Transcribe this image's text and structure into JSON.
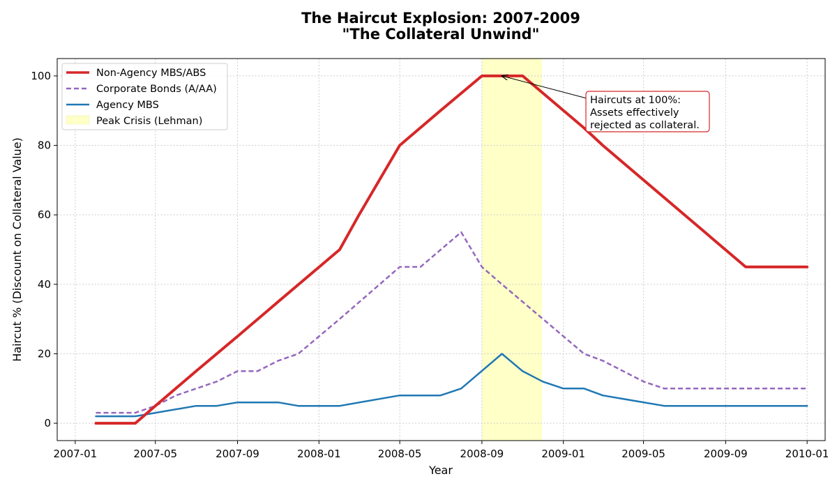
{
  "chart_data": {
    "type": "line",
    "title": "The Haircut Explosion: 2007-2009",
    "subtitle": "\"The Collateral Unwind\"",
    "xlabel": "Year",
    "ylabel": "Haircut % (Discount on Collateral Value)",
    "ylim": [
      -5,
      105
    ],
    "xlim": [
      "2006-12-05",
      "2010-01-28"
    ],
    "grid": true,
    "legend_position": "top-left",
    "x_ticks": [
      "2007-01",
      "2007-05",
      "2007-09",
      "2008-01",
      "2008-05",
      "2008-09",
      "2009-01",
      "2009-05",
      "2009-09",
      "2010-01"
    ],
    "y_ticks": [
      0,
      20,
      40,
      60,
      80,
      100
    ],
    "shaded_region": {
      "label": "Peak Crisis (Lehman)",
      "start": "2008-09-01",
      "end": "2008-11-30",
      "color": "#ffffc8"
    },
    "series": [
      {
        "name": "Non-Agency MBS/ABS",
        "color": "#d62728",
        "style": "solid-thick",
        "points": [
          [
            "2007-02-01",
            0
          ],
          [
            "2007-04-01",
            0
          ],
          [
            "2007-05-01",
            5
          ],
          [
            "2007-07-01",
            15
          ],
          [
            "2007-09-01",
            25
          ],
          [
            "2007-11-01",
            35
          ],
          [
            "2008-02-01",
            50
          ],
          [
            "2008-03-01",
            60
          ],
          [
            "2008-05-01",
            80
          ],
          [
            "2008-07-01",
            90
          ],
          [
            "2008-09-01",
            100
          ],
          [
            "2008-10-01",
            100
          ],
          [
            "2008-11-01",
            100
          ],
          [
            "2009-02-01",
            85
          ],
          [
            "2009-03-01",
            80
          ],
          [
            "2009-10-01",
            45
          ],
          [
            "2010-01-01",
            45
          ]
        ]
      },
      {
        "name": "Corporate Bonds (A/AA)",
        "color": "#9467bd",
        "style": "dashed",
        "points": [
          [
            "2007-02-01",
            3
          ],
          [
            "2007-04-01",
            3
          ],
          [
            "2007-05-01",
            5
          ],
          [
            "2007-06-01",
            8
          ],
          [
            "2007-08-01",
            12
          ],
          [
            "2007-09-01",
            15
          ],
          [
            "2007-10-01",
            15
          ],
          [
            "2007-11-01",
            18
          ],
          [
            "2007-12-01",
            20
          ],
          [
            "2008-02-01",
            30
          ],
          [
            "2008-05-01",
            45
          ],
          [
            "2008-06-01",
            45
          ],
          [
            "2008-08-01",
            55
          ],
          [
            "2008-09-01",
            45
          ],
          [
            "2008-10-01",
            40
          ],
          [
            "2009-02-01",
            20
          ],
          [
            "2009-03-01",
            18
          ],
          [
            "2009-05-01",
            12
          ],
          [
            "2009-06-01",
            10
          ],
          [
            "2010-01-01",
            10
          ]
        ]
      },
      {
        "name": "Agency MBS",
        "color": "#1f77b4",
        "style": "solid",
        "points": [
          [
            "2007-02-01",
            2
          ],
          [
            "2007-04-01",
            2
          ],
          [
            "2007-07-01",
            5
          ],
          [
            "2007-08-01",
            5
          ],
          [
            "2007-09-01",
            6
          ],
          [
            "2007-11-01",
            6
          ],
          [
            "2007-12-01",
            5
          ],
          [
            "2008-02-01",
            5
          ],
          [
            "2008-05-01",
            8
          ],
          [
            "2008-07-01",
            8
          ],
          [
            "2008-08-01",
            10
          ],
          [
            "2008-10-01",
            20
          ],
          [
            "2008-11-01",
            15
          ],
          [
            "2008-12-01",
            12
          ],
          [
            "2009-01-01",
            10
          ],
          [
            "2009-02-01",
            10
          ],
          [
            "2009-03-01",
            8
          ],
          [
            "2009-06-01",
            5
          ],
          [
            "2010-01-01",
            5
          ]
        ]
      }
    ],
    "annotation": {
      "lines": [
        "Haircuts at 100%:",
        "Assets effectively",
        "rejected as collateral."
      ],
      "target": [
        "2008-10-01",
        100
      ],
      "border_color": "#d62728"
    }
  }
}
